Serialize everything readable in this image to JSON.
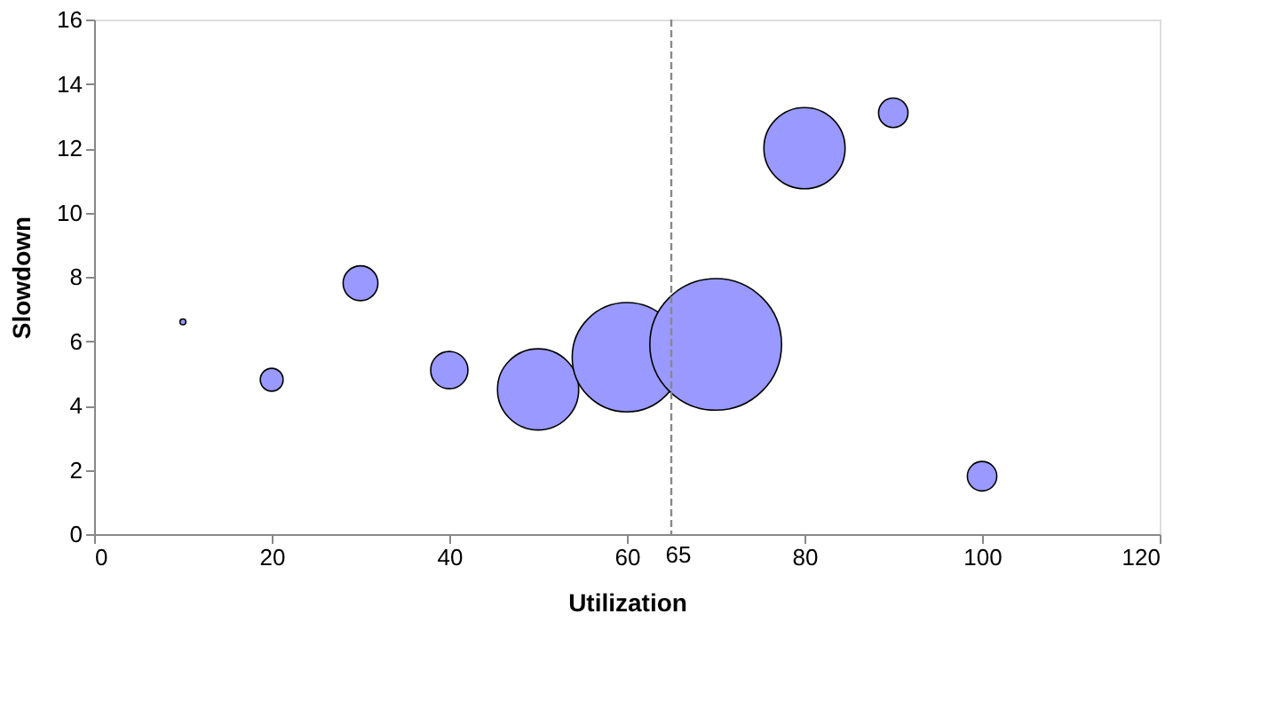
{
  "chart_data": {
    "type": "bubble",
    "xlabel": "Utilization",
    "ylabel": "Slowdown",
    "x": [
      10,
      20,
      30,
      40,
      50,
      60,
      70,
      80,
      90,
      100
    ],
    "values": [
      6.6,
      4.8,
      7.8,
      5.1,
      4.5,
      5.5,
      5.9,
      12,
      13.1,
      1.8
    ],
    "sizes": [
      0.002,
      0.03,
      0.07,
      0.08,
      0.38,
      0.69,
      1,
      0.38,
      0.05,
      0.05
    ],
    "color": "#9999ff",
    "xlim": [
      0,
      120
    ],
    "xticks": [
      0,
      20,
      40,
      60,
      80,
      100,
      120
    ],
    "ylim": [
      0,
      16
    ],
    "yticks": [
      0,
      2,
      4,
      6,
      8,
      10,
      12,
      14,
      16
    ],
    "ref_lines": [
      {
        "axis": "x",
        "value": 65,
        "label": "65",
        "color": "#888888",
        "line_style": "dashed"
      }
    ],
    "grid": false,
    "legend": false,
    "marker": "circle"
  }
}
